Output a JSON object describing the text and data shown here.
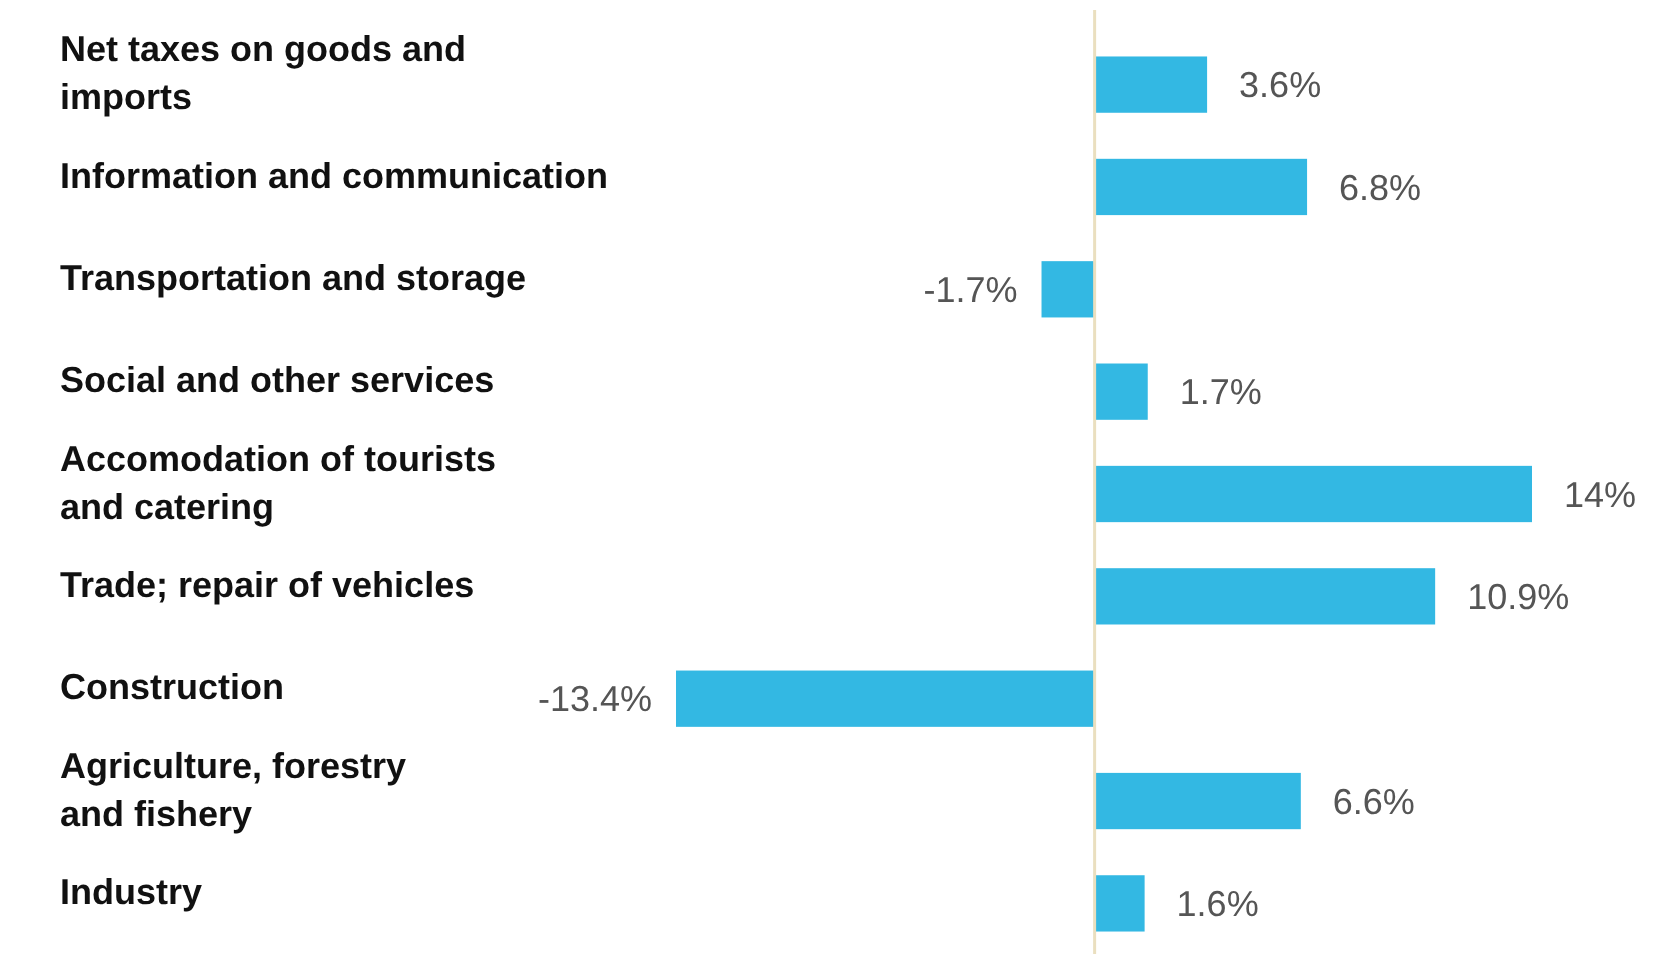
{
  "chart_data": {
    "type": "bar",
    "orientation": "horizontal",
    "categories": [
      "Net taxes on goods and\nimports",
      "Information and communication",
      "Transportation and storage",
      "Social and other services",
      "Accomodation of tourists\nand catering",
      "Trade; repair of vehicles",
      "Construction",
      "Agriculture, forestry\nand fishery",
      "Industry"
    ],
    "values": [
      3.6,
      6.8,
      -1.7,
      1.7,
      14,
      10.9,
      -13.4,
      6.6,
      1.6
    ],
    "value_labels": [
      "3.6%",
      "6.8%",
      "-1.7%",
      "1.7%",
      "14%",
      "10.9%",
      "-13.4%",
      "6.6%",
      "1.6%"
    ],
    "color": "#33b8e3",
    "ref_lines": [
      {
        "axis": "x",
        "value": 0,
        "color": "#eadfbf"
      }
    ]
  }
}
